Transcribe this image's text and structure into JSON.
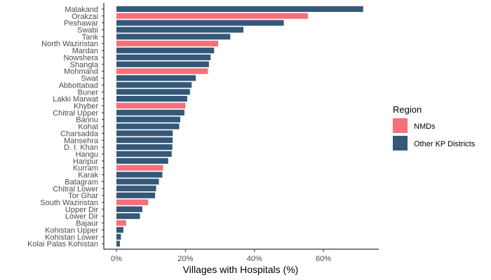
{
  "chart_data": {
    "type": "bar",
    "orientation": "horizontal",
    "title": "",
    "xlabel": "Villages with Hospitals (%)",
    "ylabel": "",
    "xlim": [
      0,
      75
    ],
    "x_ticks": [
      0,
      20,
      40,
      60
    ],
    "x_tick_labels": [
      "0%",
      "20%",
      "40%",
      "60%"
    ],
    "grid": false,
    "legend_position": "right",
    "legend_title": "Region",
    "groups": [
      {
        "name": "NMDs",
        "color": "#f4717b"
      },
      {
        "name": "Other KP Districts",
        "color": "#345878"
      }
    ],
    "categories": [
      "Malakand",
      "Orakzai",
      "Peshawar",
      "Swabi",
      "Tank",
      "North Waziristan",
      "Mardan",
      "Nowshera",
      "Shangla",
      "Mohmand",
      "Swat",
      "Abbottabad",
      "Buner",
      "Lakki Marwat",
      "Khyber",
      "Chitral Upper",
      "Bannu",
      "Kohat",
      "Charsadda",
      "Mansehra",
      "D. I. Khan",
      "Hangu",
      "Haripur",
      "Kurram",
      "Karak",
      "Batagram",
      "Chitral Lower",
      "Tor Ghar",
      "South Waziristan",
      "Upper Dir",
      "Lower Dir",
      "Bajaur",
      "Kohistan Upper",
      "Kohistan Lower",
      "Kolai Palas Kohistan"
    ],
    "values": [
      71.5,
      55.5,
      48.5,
      36.8,
      33.0,
      29.5,
      28.3,
      27.3,
      26.8,
      26.5,
      23.0,
      21.8,
      21.3,
      20.5,
      20.0,
      19.7,
      18.5,
      18.2,
      16.3,
      16.3,
      16.2,
      16.0,
      15.0,
      13.5,
      13.3,
      12.3,
      11.5,
      11.2,
      9.2,
      7.5,
      6.8,
      2.8,
      2.0,
      1.3,
      1.0
    ],
    "region": [
      "Other KP Districts",
      "NMDs",
      "Other KP Districts",
      "Other KP Districts",
      "Other KP Districts",
      "NMDs",
      "Other KP Districts",
      "Other KP Districts",
      "Other KP Districts",
      "NMDs",
      "Other KP Districts",
      "Other KP Districts",
      "Other KP Districts",
      "Other KP Districts",
      "NMDs",
      "Other KP Districts",
      "Other KP Districts",
      "Other KP Districts",
      "Other KP Districts",
      "Other KP Districts",
      "Other KP Districts",
      "Other KP Districts",
      "Other KP Districts",
      "NMDs",
      "Other KP Districts",
      "Other KP Districts",
      "Other KP Districts",
      "Other KP Districts",
      "NMDs",
      "Other KP Districts",
      "Other KP Districts",
      "NMDs",
      "Other KP Districts",
      "Other KP Districts",
      "Other KP Districts"
    ]
  }
}
